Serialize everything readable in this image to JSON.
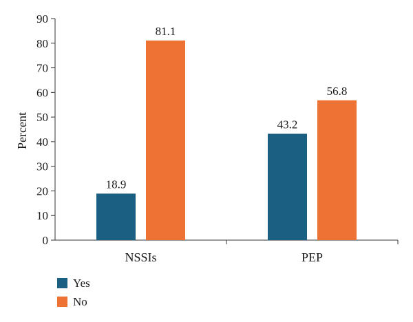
{
  "chart_data": {
    "type": "bar",
    "categories": [
      "NSSIs",
      "PEP"
    ],
    "series": [
      {
        "name": "Yes",
        "values": [
          18.9,
          43.2
        ],
        "color": "#1b5f83"
      },
      {
        "name": "No",
        "values": [
          81.1,
          56.8
        ],
        "color": "#ee7233"
      }
    ],
    "title": "",
    "xlabel": "",
    "ylabel": "Percent",
    "ylim": [
      0,
      90
    ],
    "yticks": [
      0,
      10,
      20,
      30,
      40,
      50,
      60,
      70,
      80,
      90
    ],
    "grid": false,
    "legend": "bottom-left"
  }
}
